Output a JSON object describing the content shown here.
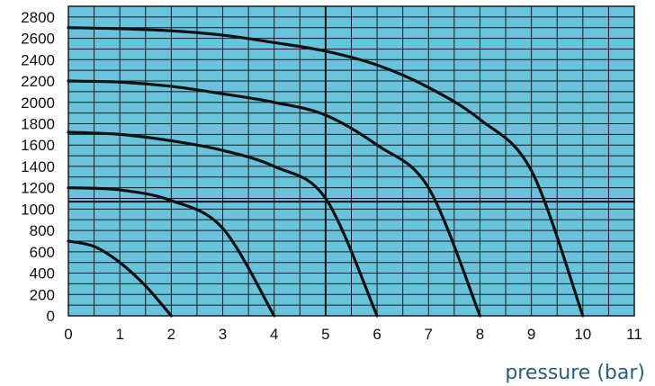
{
  "chart_data": {
    "type": "line",
    "title": "",
    "xlabel": "pressure (bar)",
    "ylabel": "",
    "xlim": [
      0,
      11
    ],
    "ylim": [
      0,
      2900
    ],
    "x_ticks": [
      0,
      1,
      2,
      3,
      4,
      5,
      6,
      7,
      8,
      9,
      10,
      11
    ],
    "y_ticks": [
      0,
      200,
      400,
      600,
      800,
      1000,
      1200,
      1400,
      1600,
      1800,
      2000,
      2200,
      2400,
      2600,
      2800
    ],
    "x_minor_step": 0.5,
    "y_minor_step": 100,
    "grid": true,
    "reference_lines": [
      {
        "axis": "x",
        "value": 5
      },
      {
        "axis": "y",
        "value": 1070
      }
    ],
    "series": [
      {
        "x": [
          0,
          0.5,
          1,
          1.5,
          2
        ],
        "y": [
          700,
          650,
          500,
          280,
          0
        ]
      },
      {
        "x": [
          0,
          1,
          2,
          3,
          4
        ],
        "y": [
          1200,
          1180,
          1080,
          820,
          0
        ]
      },
      {
        "x": [
          0,
          1,
          2,
          3,
          4,
          5,
          6
        ],
        "y": [
          1720,
          1700,
          1640,
          1550,
          1400,
          1100,
          0
        ]
      },
      {
        "x": [
          0,
          1,
          2,
          3,
          4,
          5,
          6,
          7,
          8
        ],
        "y": [
          2200,
          2190,
          2150,
          2080,
          2000,
          1880,
          1600,
          1200,
          0
        ]
      },
      {
        "x": [
          0,
          1,
          2,
          3,
          4,
          5,
          6,
          7,
          8,
          9,
          10
        ],
        "y": [
          2700,
          2690,
          2670,
          2630,
          2560,
          2480,
          2350,
          2140,
          1840,
          1360,
          0
        ]
      }
    ],
    "colors": {
      "plot_bg": "#6ac3dc",
      "grid": "#1a1a1a",
      "curve": "#111111",
      "xlabel": "#2a5f7a"
    }
  }
}
